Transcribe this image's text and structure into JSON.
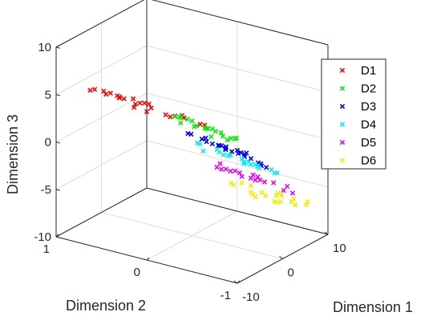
{
  "chart_data": {
    "type": "scatter",
    "dimensions": 3,
    "title": "",
    "xlabel": "Dimension 1",
    "ylabel": "Dimension 2",
    "zlabel": "Dimension 3",
    "xlim": [
      -10,
      10
    ],
    "ylim": [
      -1,
      1
    ],
    "zlim": [
      -10,
      10
    ],
    "xticks": [
      "-10",
      "0",
      "10"
    ],
    "yticks": [
      "-1",
      "0",
      "1"
    ],
    "zticks": [
      "-10",
      "-5",
      "0",
      "5",
      "10"
    ],
    "grid": true,
    "legend_position": "top-right",
    "marker": "x",
    "series": [
      {
        "name": "D1",
        "color": "#ff0000",
        "points": [
          [
            -9.5,
            0.6,
            6.4
          ],
          [
            -9.0,
            0.5,
            6.0
          ],
          [
            -8.5,
            0.7,
            5.8
          ],
          [
            -8.0,
            0.4,
            5.6
          ],
          [
            -8.8,
            0.2,
            5.3
          ],
          [
            -7.5,
            0.6,
            5.7
          ],
          [
            -7.0,
            0.3,
            5.5
          ],
          [
            -6.5,
            0.5,
            5.2
          ],
          [
            -7.8,
            -0.1,
            5.0
          ],
          [
            -6.0,
            0.6,
            5.1
          ],
          [
            -5.5,
            0.2,
            4.8
          ],
          [
            -5.0,
            0.5,
            4.5
          ],
          [
            -5.8,
            -0.2,
            4.4
          ],
          [
            -4.5,
            0.3,
            4.4
          ],
          [
            -4.0,
            0.6,
            4.2
          ],
          [
            -4.2,
            -0.1,
            4.0
          ],
          [
            -3.5,
            0.4,
            3.9
          ],
          [
            -3.8,
            0.0,
            3.6
          ],
          [
            -3.0,
            0.3,
            3.5
          ],
          [
            -3.2,
            -0.3,
            3.2
          ],
          [
            -2.5,
            0.5,
            3.3
          ],
          [
            -2.8,
            0.1,
            3.0
          ],
          [
            -2.2,
            -0.2,
            2.8
          ],
          [
            -2.0,
            0.4,
            2.6
          ]
        ]
      },
      {
        "name": "D2",
        "color": "#00ee00",
        "points": [
          [
            -8.5,
            -0.3,
            4.8
          ],
          [
            -7.5,
            -0.4,
            4.4
          ],
          [
            -7.8,
            -0.6,
            3.9
          ],
          [
            -6.8,
            -0.5,
            4.3
          ],
          [
            -6.5,
            -0.2,
            4.6
          ],
          [
            -5.5,
            -0.5,
            3.9
          ],
          [
            -5.0,
            -0.3,
            3.6
          ],
          [
            -5.2,
            -0.6,
            3.3
          ],
          [
            -4.5,
            -0.4,
            3.4
          ],
          [
            -4.2,
            -0.7,
            3.1
          ],
          [
            -4.0,
            -0.2,
            3.6
          ],
          [
            -3.6,
            -0.5,
            3.0
          ],
          [
            -3.2,
            -0.3,
            2.9
          ],
          [
            -3.4,
            -0.6,
            2.6
          ],
          [
            -2.8,
            -0.4,
            2.7
          ],
          [
            -2.5,
            -0.6,
            2.3
          ],
          [
            -4.8,
            -0.1,
            4.0
          ],
          [
            -3.0,
            -0.1,
            3.3
          ],
          [
            -5.8,
            -0.1,
            4.3
          ],
          [
            -6.2,
            -0.7,
            3.4
          ]
        ]
      },
      {
        "name": "D3",
        "color": "#0000ee",
        "points": [
          [
            -6.0,
            -0.8,
            2.5
          ],
          [
            -4.5,
            -0.6,
            2.0
          ],
          [
            -4.0,
            -0.8,
            1.7
          ],
          [
            -3.5,
            -0.5,
            1.6
          ],
          [
            -3.2,
            -0.7,
            1.3
          ],
          [
            -3.0,
            -0.3,
            1.8
          ],
          [
            -2.6,
            -0.5,
            1.1
          ],
          [
            -2.4,
            -0.7,
            0.9
          ],
          [
            -2.0,
            -0.4,
            1.0
          ],
          [
            -1.8,
            -0.6,
            0.6
          ],
          [
            -1.5,
            -0.3,
            0.8
          ],
          [
            -1.2,
            -0.5,
            0.4
          ],
          [
            -1.0,
            -0.7,
            0.1
          ],
          [
            -0.8,
            -0.2,
            0.6
          ],
          [
            -0.6,
            -0.4,
            0.2
          ],
          [
            -0.4,
            -0.6,
            -0.1
          ],
          [
            -2.8,
            -0.9,
            0.5
          ],
          [
            -1.6,
            -0.9,
            -0.2
          ],
          [
            -0.9,
            0.0,
            1.0
          ],
          [
            -0.2,
            -0.3,
            0.3
          ],
          [
            -3.8,
            -0.3,
            1.9
          ],
          [
            -2.2,
            -0.1,
            1.5
          ],
          [
            -1.4,
            -0.8,
            0.0
          ],
          [
            -0.7,
            -0.8,
            -0.5
          ]
        ]
      },
      {
        "name": "D4",
        "color": "#00eeee",
        "points": [
          [
            -1.2,
            -0.8,
            -0.6
          ],
          [
            -0.5,
            -0.6,
            -0.8
          ],
          [
            0.0,
            -0.4,
            -0.6
          ],
          [
            0.5,
            -0.7,
            -1.1
          ],
          [
            1.0,
            -0.3,
            -1.0
          ],
          [
            1.5,
            -0.5,
            -1.4
          ],
          [
            2.0,
            -0.2,
            -1.2
          ],
          [
            2.5,
            -0.6,
            -1.8
          ],
          [
            3.0,
            -0.4,
            -1.7
          ],
          [
            3.5,
            -0.1,
            -1.6
          ],
          [
            0.8,
            -0.9,
            -1.4
          ],
          [
            2.2,
            -0.8,
            -2.0
          ],
          [
            4.0,
            -0.5,
            -2.3
          ],
          [
            4.5,
            -0.2,
            -2.2
          ],
          [
            5.0,
            -0.4,
            -2.8
          ],
          [
            5.5,
            -0.6,
            -3.0
          ],
          [
            1.8,
            0.0,
            -0.8
          ],
          [
            3.2,
            0.1,
            -1.3
          ],
          [
            6.5,
            -0.3,
            -3.2
          ],
          [
            8.5,
            0.3,
            -4.0
          ]
        ]
      },
      {
        "name": "D5",
        "color": "#ee00ee",
        "points": [
          [
            0.5,
            -0.3,
            -2.4
          ],
          [
            1.0,
            -0.5,
            -2.8
          ],
          [
            1.5,
            -0.2,
            -2.7
          ],
          [
            2.0,
            -0.6,
            -3.2
          ],
          [
            2.5,
            -0.3,
            -3.1
          ],
          [
            3.0,
            -0.5,
            -3.5
          ],
          [
            3.5,
            -0.2,
            -3.4
          ],
          [
            4.0,
            -0.6,
            -3.9
          ],
          [
            4.5,
            -0.3,
            -3.8
          ],
          [
            5.0,
            -0.5,
            -4.2
          ],
          [
            5.5,
            -0.2,
            -4.1
          ],
          [
            6.0,
            -0.6,
            -4.5
          ],
          [
            6.5,
            -0.4,
            -4.5
          ],
          [
            7.0,
            -0.7,
            -4.9
          ],
          [
            2.2,
            -0.9,
            -3.6
          ],
          [
            4.2,
            -0.9,
            -4.4
          ],
          [
            6.2,
            0.0,
            -4.0
          ],
          [
            7.5,
            -0.3,
            -4.8
          ]
        ]
      },
      {
        "name": "D6",
        "color": "#eeee00",
        "points": [
          [
            0.0,
            -0.7,
            -4.2
          ],
          [
            0.8,
            -0.9,
            -4.5
          ],
          [
            1.5,
            -0.6,
            -4.6
          ],
          [
            2.2,
            -0.8,
            -5.0
          ],
          [
            3.0,
            -0.5,
            -5.0
          ],
          [
            3.6,
            -0.8,
            -5.4
          ],
          [
            4.2,
            -0.6,
            -5.4
          ],
          [
            4.8,
            -0.9,
            -5.8
          ],
          [
            5.4,
            -0.5,
            -5.6
          ],
          [
            6.0,
            -0.8,
            -6.0
          ],
          [
            6.6,
            -0.6,
            -6.0
          ],
          [
            7.2,
            -0.9,
            -6.4
          ],
          [
            7.8,
            -0.6,
            -6.3
          ],
          [
            8.5,
            -0.7,
            -6.6
          ],
          [
            9.0,
            -0.5,
            -6.6
          ],
          [
            9.5,
            -0.8,
            -6.9
          ],
          [
            2.6,
            -0.3,
            -4.4
          ],
          [
            5.0,
            -0.3,
            -5.0
          ],
          [
            7.0,
            -0.3,
            -5.8
          ],
          [
            1.2,
            -0.4,
            -4.0
          ]
        ]
      }
    ]
  }
}
